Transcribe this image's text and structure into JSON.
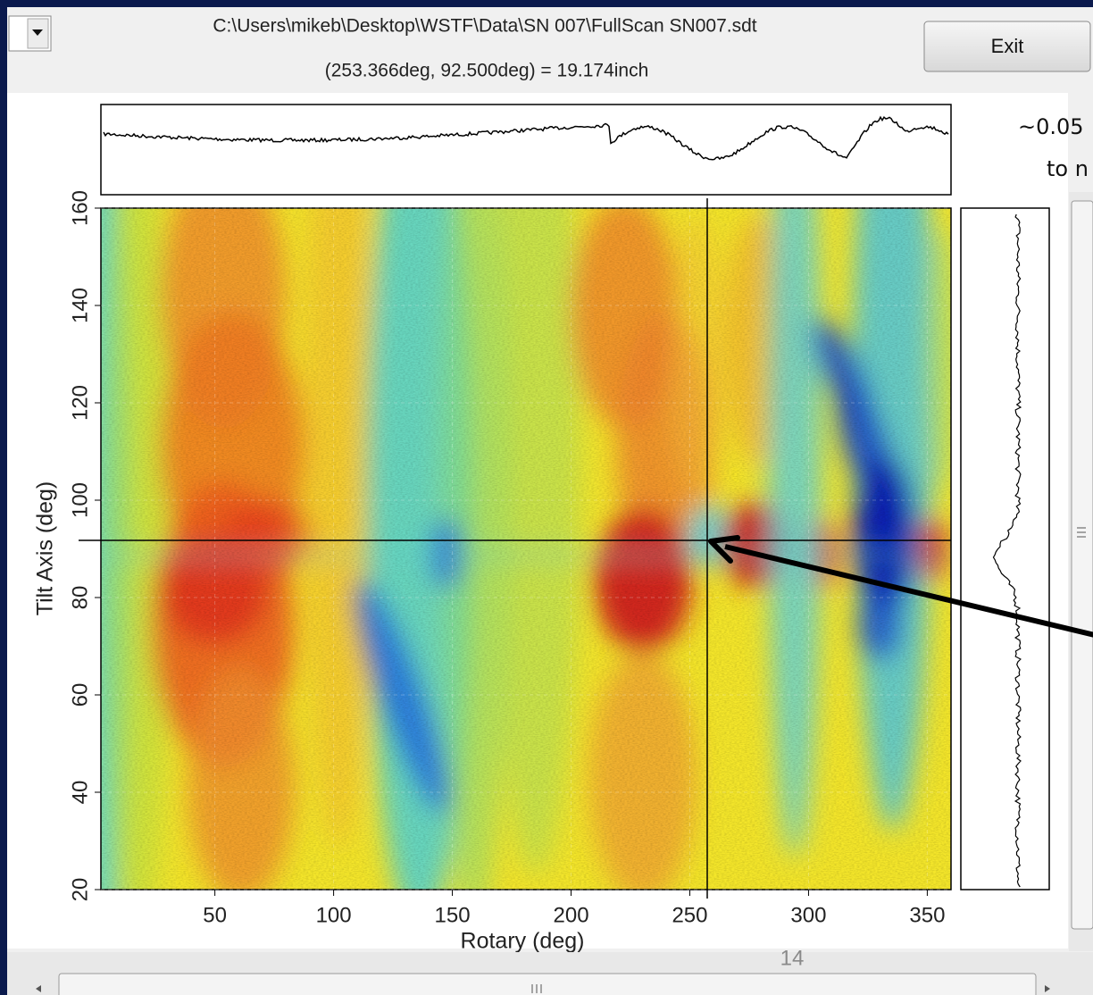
{
  "window": {
    "file_path": "C:\\Users\\mikeb\\Desktop\\WSTF\\Data\\SN 007\\FullScan SN007.sdt",
    "readout": "(253.366deg, 92.500deg) = 19.174inch",
    "exit_button": "Exit"
  },
  "chart_data": {
    "type": "heatmap",
    "xlabel": "Rotary (deg)",
    "ylabel": "Tilt Axis (deg)",
    "xlim": [
      2,
      360
    ],
    "ylim": [
      20,
      160
    ],
    "xticks": [
      50,
      100,
      150,
      200,
      250,
      300,
      350
    ],
    "yticks": [
      20,
      40,
      60,
      80,
      100,
      120,
      140,
      160
    ]
  },
  "annotation": {
    "line1": "~0.05",
    "line2": "to n"
  },
  "page_number": "14"
}
